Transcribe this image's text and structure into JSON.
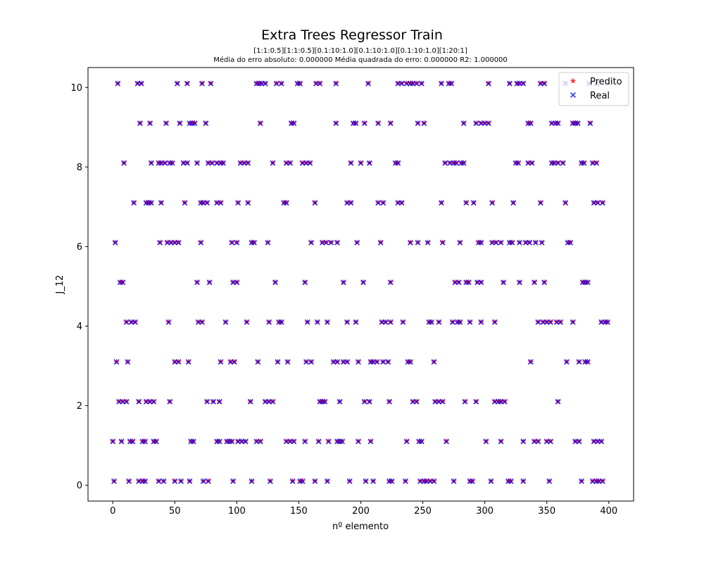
{
  "chart_data": {
    "type": "scatter",
    "title": "Extra Trees Regressor Train",
    "subtitle_lines": [
      "[1:1:0.5][1:1:0.5][0.1:10:1.0][0.1:10:1.0][0.1:10:1.0][1:20:1]",
      "Média do erro absoluto: 0.000000 Média quadrada do erro: 0.000000 R2: 1.000000"
    ],
    "xlabel": "nº elemento",
    "ylabel": "J_12",
    "xlim": [
      -20,
      420
    ],
    "ylim": [
      -0.4,
      10.5
    ],
    "x_ticks": [
      0,
      50,
      100,
      150,
      200,
      250,
      300,
      350,
      400
    ],
    "y_ticks": [
      0,
      2,
      4,
      6,
      8,
      10
    ],
    "x_tick_labels": [
      "0",
      "50",
      "100",
      "150",
      "200",
      "250",
      "300",
      "350",
      "400"
    ],
    "y_tick_labels": [
      "0",
      "2",
      "4",
      "6",
      "8",
      "10"
    ],
    "legend_position": "top-right",
    "grid": false,
    "series": [
      {
        "name": "Predito",
        "marker": "star",
        "color": "#ff0000"
      },
      {
        "name": "Real",
        "marker": "x",
        "color": "#0000ff"
      }
    ],
    "points_by_level": [
      {
        "y": 10.1,
        "x": [
          4,
          20,
          23,
          52,
          60,
          72,
          79,
          116,
          118,
          120,
          123,
          132,
          136,
          149,
          151,
          164,
          167,
          180,
          206,
          230,
          233,
          237,
          240,
          242,
          245,
          249,
          265,
          271,
          273,
          303,
          320,
          326,
          328,
          331,
          345,
          348,
          365,
          384,
          390
        ]
      },
      {
        "y": 9.1,
        "x": [
          22,
          30,
          43,
          54,
          62,
          64,
          66,
          75,
          119,
          144,
          146,
          180,
          194,
          196,
          203,
          214,
          224,
          246,
          251,
          283,
          293,
          297,
          300,
          303,
          335,
          337,
          354,
          357,
          359,
          371,
          373,
          375,
          385
        ]
      },
      {
        "y": 8.1,
        "x": [
          9,
          31,
          37,
          39,
          42,
          46,
          48,
          57,
          60,
          68,
          77,
          80,
          84,
          87,
          89,
          103,
          106,
          109,
          129,
          140,
          143,
          153,
          156,
          159,
          192,
          200,
          207,
          228,
          230,
          268,
          272,
          275,
          277,
          281,
          283,
          325,
          327,
          335,
          338,
          354,
          356,
          359,
          363,
          378,
          380,
          387,
          390
        ]
      },
      {
        "y": 7.1,
        "x": [
          17,
          27,
          29,
          31,
          39,
          58,
          71,
          73,
          76,
          84,
          87,
          101,
          109,
          138,
          140,
          163,
          189,
          192,
          214,
          218,
          230,
          233,
          265,
          285,
          291,
          306,
          323,
          345,
          365,
          388,
          391,
          395
        ]
      },
      {
        "y": 6.1,
        "x": [
          2,
          38,
          44,
          47,
          50,
          53,
          71,
          96,
          100,
          112,
          114,
          125,
          160,
          169,
          172,
          176,
          181,
          197,
          216,
          240,
          246,
          254,
          266,
          280,
          295,
          297,
          306,
          309,
          313,
          320,
          322,
          328,
          333,
          336,
          341,
          346,
          367,
          369
        ]
      },
      {
        "y": 5.1,
        "x": [
          6,
          8,
          68,
          78,
          97,
          100,
          131,
          155,
          186,
          202,
          224,
          276,
          279,
          285,
          287,
          294,
          297,
          315,
          328,
          340,
          348,
          379,
          381,
          383
        ]
      },
      {
        "y": 4.1,
        "x": [
          11,
          15,
          18,
          45,
          69,
          72,
          91,
          108,
          126,
          134,
          136,
          157,
          165,
          173,
          189,
          196,
          217,
          220,
          224,
          234,
          255,
          257,
          263,
          274,
          278,
          280,
          288,
          297,
          308,
          343,
          347,
          350,
          353,
          358,
          361,
          371,
          394,
          397,
          399
        ]
      },
      {
        "y": 3.1,
        "x": [
          3,
          12,
          50,
          53,
          61,
          87,
          95,
          98,
          117,
          133,
          141,
          156,
          160,
          178,
          181,
          186,
          189,
          198,
          208,
          210,
          213,
          218,
          222,
          238,
          240,
          259,
          337,
          366,
          376,
          381,
          383
        ]
      },
      {
        "y": 2.1,
        "x": [
          5,
          8,
          11,
          21,
          27,
          30,
          33,
          46,
          76,
          81,
          86,
          111,
          123,
          126,
          129,
          167,
          169,
          171,
          183,
          203,
          207,
          223,
          242,
          245,
          260,
          263,
          266,
          284,
          293,
          308,
          311,
          313,
          316,
          359
        ]
      },
      {
        "y": 1.1,
        "x": [
          0,
          7,
          14,
          16,
          24,
          26,
          33,
          35,
          63,
          65,
          84,
          86,
          92,
          94,
          96,
          101,
          104,
          107,
          116,
          119,
          140,
          143,
          146,
          155,
          166,
          174,
          181,
          183,
          185,
          198,
          208,
          237,
          247,
          249,
          269,
          301,
          313,
          331,
          340,
          343,
          350,
          353,
          373,
          376,
          388,
          391,
          394
        ]
      },
      {
        "y": 0.1,
        "x": [
          1,
          13,
          21,
          24,
          26,
          37,
          41,
          50,
          55,
          62,
          73,
          77,
          97,
          112,
          127,
          145,
          151,
          153,
          163,
          173,
          191,
          204,
          210,
          223,
          225,
          236,
          248,
          251,
          253,
          256,
          259,
          275,
          288,
          290,
          305,
          319,
          321,
          331,
          352,
          378,
          387,
          390,
          392,
          395
        ]
      }
    ]
  }
}
